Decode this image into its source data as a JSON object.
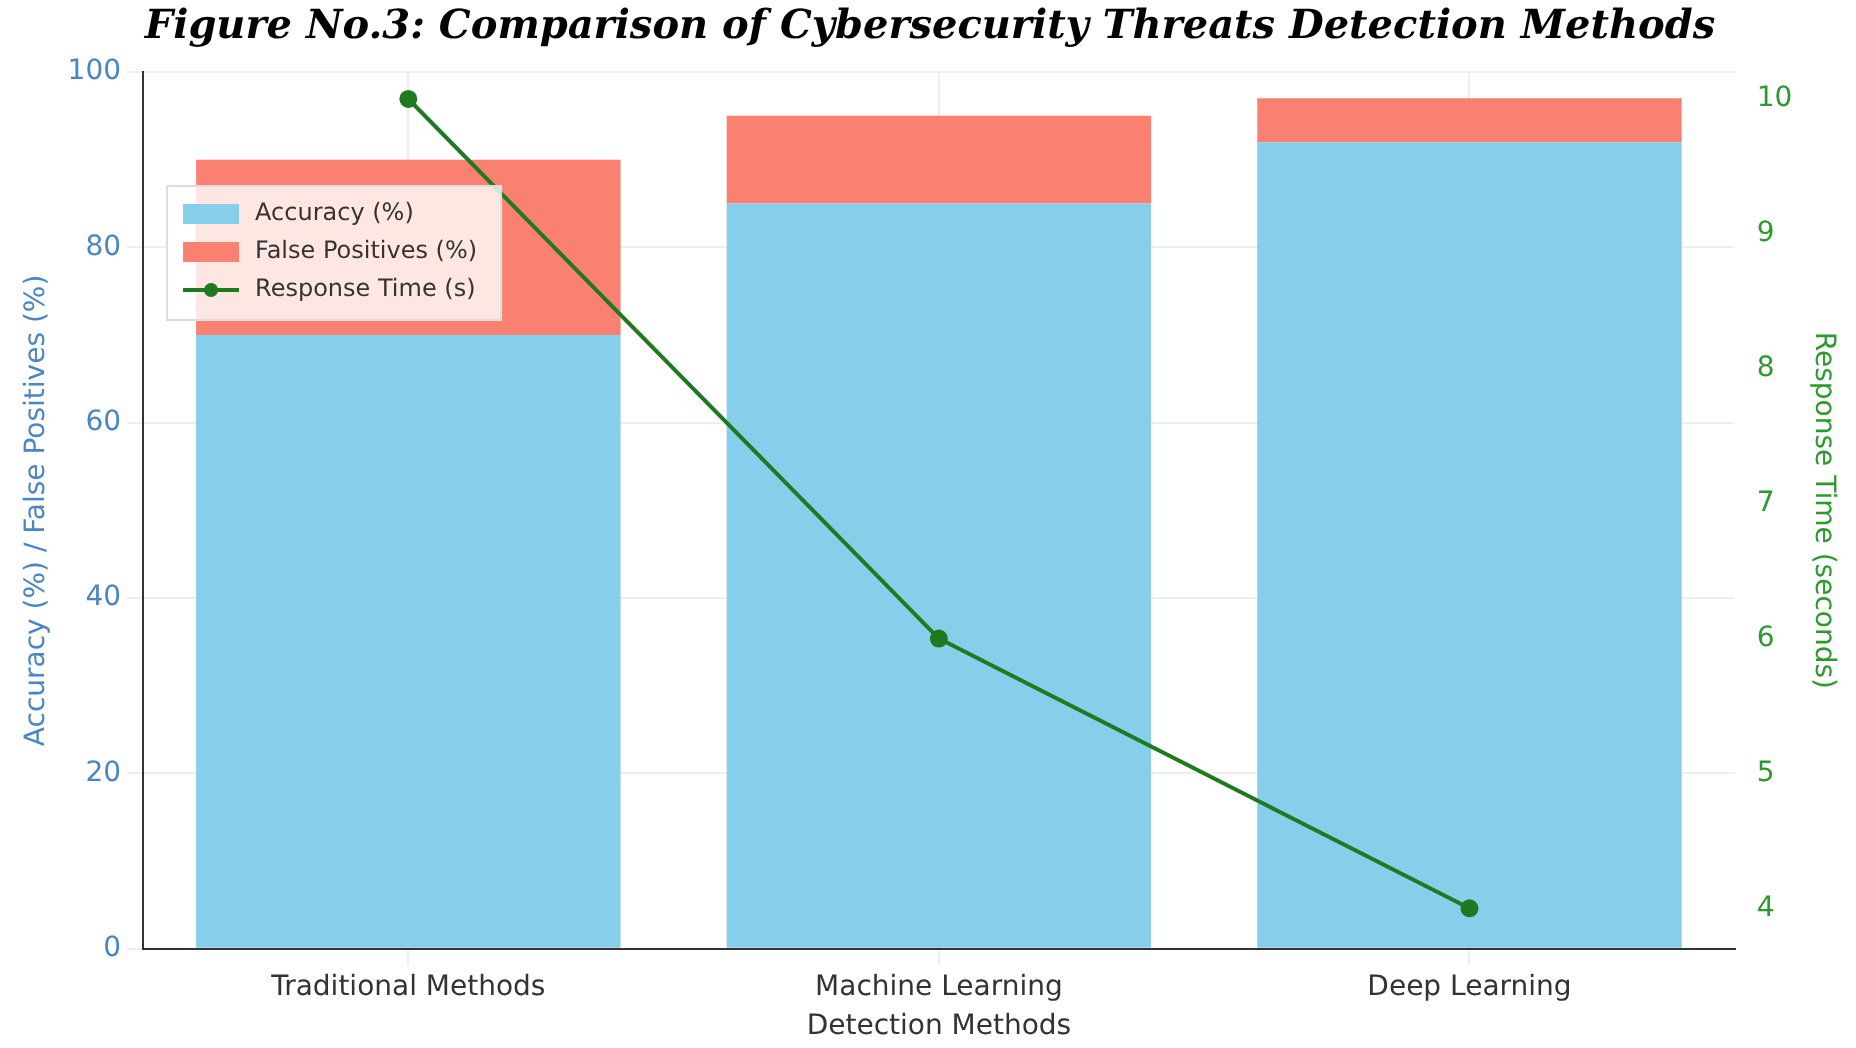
{
  "chart_data": {
    "type": "bar",
    "title": "Figure No.3: Comparison of Cybersecurity Threats Detection Methods",
    "xlabel": "Detection Methods",
    "ylabel": "Accuracy (%) / False Positives (%)",
    "y2label": "Response Time (seconds)",
    "categories": [
      "Traditional Methods",
      "Machine Learning",
      "Deep Learning"
    ],
    "stacked": true,
    "series": [
      {
        "name": "Accuracy (%)",
        "color": "#87ceeb",
        "values": [
          70,
          85,
          92
        ]
      },
      {
        "name": "False Positives (%)",
        "color": "#fa8072",
        "values": [
          20,
          10,
          5
        ]
      },
      {
        "name": "Response Time (s)",
        "type": "line",
        "axis": "y2",
        "color": "#1f7a1f",
        "values": [
          10,
          6,
          4
        ],
        "marker": "circle"
      }
    ],
    "ylim": [
      0,
      100
    ],
    "yticks": [
      0,
      20,
      40,
      60,
      80,
      100
    ],
    "y2lim": [
      3.7,
      10.2
    ],
    "y2ticks": [
      4,
      5,
      6,
      7,
      8,
      9,
      10
    ],
    "grid": true,
    "legend": "top left"
  }
}
